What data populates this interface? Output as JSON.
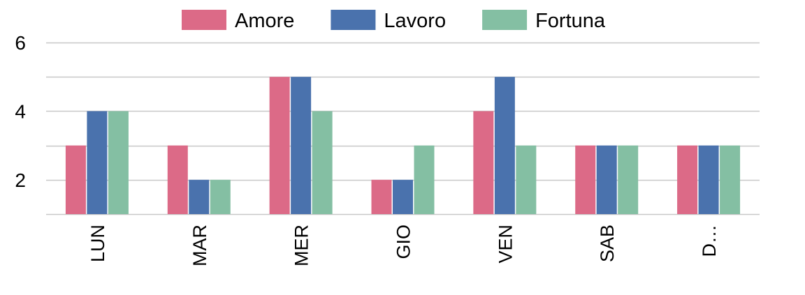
{
  "chart_data": {
    "type": "bar",
    "title": "",
    "xlabel": "",
    "ylabel": "",
    "categories": [
      "LUN",
      "MAR",
      "MER",
      "GIO",
      "VEN",
      "SAB",
      "D…"
    ],
    "series": [
      {
        "name": "Amore",
        "color": "#dc6a87",
        "values": [
          3,
          3,
          5,
          2,
          4,
          3,
          3
        ]
      },
      {
        "name": "Lavoro",
        "color": "#4a72ad",
        "values": [
          4,
          2,
          5,
          2,
          5,
          3,
          3
        ]
      },
      {
        "name": "Fortuna",
        "color": "#84bfa3",
        "values": [
          4,
          2,
          4,
          3,
          3,
          3,
          3
        ]
      }
    ],
    "ylim": [
      1,
      6
    ],
    "yticks": [
      2,
      4,
      6
    ],
    "ytick_labels": [
      "2",
      "4",
      "6"
    ],
    "grid_values": [
      1,
      2,
      3,
      4,
      5,
      6
    ],
    "grid": true,
    "legend_position": "top-center",
    "xtick_rotation": "vertical"
  }
}
